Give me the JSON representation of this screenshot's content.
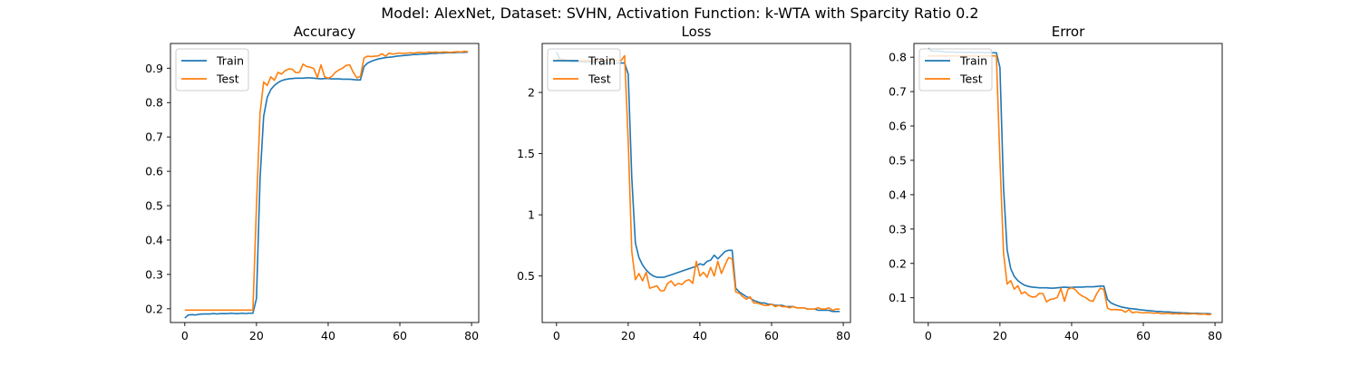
{
  "suptitle": "Model: AlexNet, Dataset: SVHN, Activation Function: k-WTA with Sparcity Ratio 0.2",
  "colors": {
    "train": "#1f77b4",
    "test": "#ff7f0e"
  },
  "chart_data": [
    {
      "type": "line",
      "title": "Accuracy",
      "xlabel": "",
      "ylabel": "",
      "xlim": [
        -4,
        82
      ],
      "ylim": [
        0.16,
        0.972
      ],
      "xticks": [
        0,
        20,
        40,
        60,
        80
      ],
      "yticks": [
        0.2,
        0.3,
        0.4,
        0.5,
        0.6,
        0.7,
        0.8,
        0.9
      ],
      "legend": "upper-left",
      "grid": false,
      "series": [
        {
          "name": "Train",
          "color": "#1f77b4",
          "x": [
            0,
            1,
            2,
            3,
            4,
            5,
            6,
            7,
            8,
            9,
            10,
            11,
            12,
            13,
            14,
            15,
            16,
            17,
            18,
            19,
            20,
            21,
            22,
            23,
            24,
            25,
            26,
            27,
            28,
            29,
            30,
            31,
            32,
            33,
            34,
            35,
            36,
            37,
            38,
            39,
            40,
            41,
            42,
            43,
            44,
            45,
            46,
            47,
            48,
            49,
            50,
            51,
            52,
            53,
            54,
            55,
            56,
            57,
            58,
            59,
            60,
            61,
            62,
            63,
            64,
            65,
            66,
            67,
            68,
            69,
            70,
            71,
            72,
            73,
            74,
            75,
            76,
            77,
            78,
            79
          ],
          "y": [
            0.173,
            0.182,
            0.183,
            0.182,
            0.184,
            0.185,
            0.185,
            0.185,
            0.186,
            0.185,
            0.186,
            0.186,
            0.186,
            0.187,
            0.186,
            0.186,
            0.187,
            0.186,
            0.187,
            0.187,
            0.23,
            0.58,
            0.76,
            0.815,
            0.838,
            0.85,
            0.858,
            0.864,
            0.867,
            0.869,
            0.87,
            0.871,
            0.871,
            0.871,
            0.872,
            0.872,
            0.871,
            0.87,
            0.869,
            0.87,
            0.87,
            0.869,
            0.869,
            0.869,
            0.868,
            0.868,
            0.868,
            0.867,
            0.866,
            0.866,
            0.905,
            0.915,
            0.92,
            0.924,
            0.927,
            0.929,
            0.931,
            0.932,
            0.933,
            0.935,
            0.936,
            0.937,
            0.938,
            0.939,
            0.94,
            0.94,
            0.941,
            0.941,
            0.942,
            0.943,
            0.943,
            0.944,
            0.944,
            0.945,
            0.945,
            0.945,
            0.946,
            0.946,
            0.946,
            0.947
          ]
        },
        {
          "name": "Test",
          "color": "#ff7f0e",
          "x": [
            0,
            1,
            2,
            3,
            4,
            5,
            6,
            7,
            8,
            9,
            10,
            11,
            12,
            13,
            14,
            15,
            16,
            17,
            18,
            19,
            20,
            21,
            22,
            23,
            24,
            25,
            26,
            27,
            28,
            29,
            30,
            31,
            32,
            33,
            34,
            35,
            36,
            37,
            38,
            39,
            40,
            41,
            42,
            43,
            44,
            45,
            46,
            47,
            48,
            49,
            50,
            51,
            52,
            53,
            54,
            55,
            56,
            57,
            58,
            59,
            60,
            61,
            62,
            63,
            64,
            65,
            66,
            67,
            68,
            69,
            70,
            71,
            72,
            73,
            74,
            75,
            76,
            77,
            78,
            79
          ],
          "y": [
            0.196,
            0.196,
            0.196,
            0.196,
            0.196,
            0.196,
            0.196,
            0.196,
            0.196,
            0.196,
            0.196,
            0.196,
            0.196,
            0.196,
            0.196,
            0.196,
            0.196,
            0.196,
            0.196,
            0.196,
            0.5,
            0.77,
            0.86,
            0.85,
            0.875,
            0.865,
            0.888,
            0.883,
            0.893,
            0.898,
            0.897,
            0.887,
            0.888,
            0.912,
            0.905,
            0.903,
            0.899,
            0.873,
            0.91,
            0.875,
            0.871,
            0.876,
            0.888,
            0.895,
            0.9,
            0.908,
            0.91,
            0.888,
            0.872,
            0.876,
            0.93,
            0.935,
            0.934,
            0.935,
            0.936,
            0.942,
            0.935,
            0.944,
            0.941,
            0.943,
            0.944,
            0.943,
            0.944,
            0.945,
            0.944,
            0.946,
            0.946,
            0.945,
            0.947,
            0.946,
            0.947,
            0.946,
            0.947,
            0.947,
            0.946,
            0.947,
            0.948,
            0.947,
            0.949,
            0.948
          ]
        }
      ]
    },
    {
      "type": "line",
      "title": "Loss",
      "xlabel": "",
      "ylabel": "",
      "xlim": [
        -4,
        82
      ],
      "ylim": [
        0.12,
        2.4
      ],
      "xticks": [
        0,
        20,
        40,
        60,
        80
      ],
      "yticks": [
        0.5,
        1.0,
        1.5,
        2.0
      ],
      "legend": "upper-left",
      "grid": false,
      "series": [
        {
          "name": "Train",
          "color": "#1f77b4",
          "x": [
            0,
            1,
            2,
            3,
            4,
            5,
            6,
            7,
            8,
            9,
            10,
            11,
            12,
            13,
            14,
            15,
            16,
            17,
            18,
            19,
            20,
            21,
            22,
            23,
            24,
            25,
            26,
            27,
            28,
            29,
            30,
            31,
            32,
            33,
            34,
            35,
            36,
            37,
            38,
            39,
            40,
            41,
            42,
            43,
            44,
            45,
            46,
            47,
            48,
            49,
            50,
            51,
            52,
            53,
            54,
            55,
            56,
            57,
            58,
            59,
            60,
            61,
            62,
            63,
            64,
            65,
            66,
            67,
            68,
            69,
            70,
            71,
            72,
            73,
            74,
            75,
            76,
            77,
            78,
            79
          ],
          "y": [
            2.33,
            2.27,
            2.26,
            2.26,
            2.25,
            2.25,
            2.25,
            2.25,
            2.25,
            2.25,
            2.25,
            2.25,
            2.25,
            2.24,
            2.24,
            2.24,
            2.24,
            2.24,
            2.24,
            2.24,
            2.15,
            1.3,
            0.77,
            0.65,
            0.59,
            0.55,
            0.52,
            0.5,
            0.49,
            0.49,
            0.49,
            0.5,
            0.51,
            0.52,
            0.53,
            0.54,
            0.55,
            0.56,
            0.57,
            0.58,
            0.6,
            0.59,
            0.62,
            0.63,
            0.67,
            0.64,
            0.67,
            0.7,
            0.71,
            0.71,
            0.4,
            0.37,
            0.35,
            0.33,
            0.32,
            0.3,
            0.29,
            0.28,
            0.28,
            0.27,
            0.27,
            0.26,
            0.26,
            0.26,
            0.25,
            0.25,
            0.25,
            0.24,
            0.24,
            0.24,
            0.23,
            0.23,
            0.23,
            0.22,
            0.22,
            0.22,
            0.22,
            0.21,
            0.21,
            0.21
          ]
        },
        {
          "name": "Test",
          "color": "#ff7f0e",
          "x": [
            0,
            1,
            2,
            3,
            4,
            5,
            6,
            7,
            8,
            9,
            10,
            11,
            12,
            13,
            14,
            15,
            16,
            17,
            18,
            19,
            20,
            21,
            22,
            23,
            24,
            25,
            26,
            27,
            28,
            29,
            30,
            31,
            32,
            33,
            34,
            35,
            36,
            37,
            38,
            39,
            40,
            41,
            42,
            43,
            44,
            45,
            46,
            47,
            48,
            49,
            50,
            51,
            52,
            53,
            54,
            55,
            56,
            57,
            58,
            59,
            60,
            61,
            62,
            63,
            64,
            65,
            66,
            67,
            68,
            69,
            70,
            71,
            72,
            73,
            74,
            75,
            76,
            77,
            78,
            79
          ],
          "y": [
            2.27,
            2.27,
            2.27,
            2.26,
            2.26,
            2.26,
            2.26,
            2.26,
            2.26,
            2.26,
            2.26,
            2.26,
            2.26,
            2.26,
            2.26,
            2.26,
            2.26,
            2.26,
            2.26,
            2.3,
            1.6,
            0.7,
            0.47,
            0.52,
            0.46,
            0.53,
            0.4,
            0.41,
            0.42,
            0.38,
            0.38,
            0.44,
            0.46,
            0.42,
            0.44,
            0.43,
            0.46,
            0.47,
            0.44,
            0.62,
            0.5,
            0.53,
            0.49,
            0.57,
            0.5,
            0.62,
            0.52,
            0.59,
            0.65,
            0.64,
            0.37,
            0.36,
            0.33,
            0.31,
            0.33,
            0.28,
            0.28,
            0.27,
            0.26,
            0.26,
            0.27,
            0.25,
            0.26,
            0.25,
            0.25,
            0.24,
            0.25,
            0.24,
            0.24,
            0.24,
            0.23,
            0.23,
            0.23,
            0.24,
            0.23,
            0.23,
            0.24,
            0.22,
            0.23,
            0.23
          ]
        }
      ]
    },
    {
      "type": "line",
      "title": "Error",
      "xlabel": "",
      "ylabel": "",
      "xlim": [
        -4,
        82
      ],
      "ylim": [
        0.028,
        0.84
      ],
      "xticks": [
        0,
        20,
        40,
        60,
        80
      ],
      "yticks": [
        0.1,
        0.2,
        0.3,
        0.4,
        0.5,
        0.6,
        0.7,
        0.8
      ],
      "legend": "upper-left",
      "grid": false,
      "series": [
        {
          "name": "Train",
          "color": "#1f77b4",
          "x": [
            0,
            1,
            2,
            3,
            4,
            5,
            6,
            7,
            8,
            9,
            10,
            11,
            12,
            13,
            14,
            15,
            16,
            17,
            18,
            19,
            20,
            21,
            22,
            23,
            24,
            25,
            26,
            27,
            28,
            29,
            30,
            31,
            32,
            33,
            34,
            35,
            36,
            37,
            38,
            39,
            40,
            41,
            42,
            43,
            44,
            45,
            46,
            47,
            48,
            49,
            50,
            51,
            52,
            53,
            54,
            55,
            56,
            57,
            58,
            59,
            60,
            61,
            62,
            63,
            64,
            65,
            66,
            67,
            68,
            69,
            70,
            71,
            72,
            73,
            74,
            75,
            76,
            77,
            78,
            79
          ],
          "y": [
            0.826,
            0.818,
            0.817,
            0.818,
            0.816,
            0.815,
            0.815,
            0.815,
            0.814,
            0.815,
            0.814,
            0.814,
            0.814,
            0.813,
            0.814,
            0.814,
            0.813,
            0.814,
            0.813,
            0.813,
            0.77,
            0.42,
            0.24,
            0.185,
            0.162,
            0.15,
            0.142,
            0.136,
            0.133,
            0.131,
            0.13,
            0.129,
            0.129,
            0.129,
            0.128,
            0.128,
            0.129,
            0.13,
            0.131,
            0.13,
            0.13,
            0.131,
            0.131,
            0.131,
            0.132,
            0.132,
            0.132,
            0.133,
            0.134,
            0.134,
            0.095,
            0.085,
            0.08,
            0.076,
            0.073,
            0.071,
            0.069,
            0.068,
            0.067,
            0.065,
            0.064,
            0.063,
            0.062,
            0.061,
            0.06,
            0.06,
            0.059,
            0.059,
            0.058,
            0.057,
            0.057,
            0.056,
            0.056,
            0.055,
            0.055,
            0.055,
            0.054,
            0.054,
            0.054,
            0.053
          ]
        },
        {
          "name": "Test",
          "color": "#ff7f0e",
          "x": [
            0,
            1,
            2,
            3,
            4,
            5,
            6,
            7,
            8,
            9,
            10,
            11,
            12,
            13,
            14,
            15,
            16,
            17,
            18,
            19,
            20,
            21,
            22,
            23,
            24,
            25,
            26,
            27,
            28,
            29,
            30,
            31,
            32,
            33,
            34,
            35,
            36,
            37,
            38,
            39,
            40,
            41,
            42,
            43,
            44,
            45,
            46,
            47,
            48,
            49,
            50,
            51,
            52,
            53,
            54,
            55,
            56,
            57,
            58,
            59,
            60,
            61,
            62,
            63,
            64,
            65,
            66,
            67,
            68,
            69,
            70,
            71,
            72,
            73,
            74,
            75,
            76,
            77,
            78,
            79
          ],
          "y": [
            0.804,
            0.804,
            0.804,
            0.804,
            0.804,
            0.804,
            0.804,
            0.804,
            0.804,
            0.804,
            0.804,
            0.804,
            0.804,
            0.804,
            0.804,
            0.804,
            0.804,
            0.804,
            0.804,
            0.804,
            0.5,
            0.23,
            0.14,
            0.15,
            0.125,
            0.135,
            0.112,
            0.117,
            0.107,
            0.102,
            0.103,
            0.113,
            0.112,
            0.088,
            0.095,
            0.097,
            0.101,
            0.127,
            0.09,
            0.125,
            0.129,
            0.124,
            0.112,
            0.105,
            0.1,
            0.092,
            0.09,
            0.112,
            0.128,
            0.124,
            0.07,
            0.065,
            0.066,
            0.065,
            0.064,
            0.058,
            0.065,
            0.056,
            0.059,
            0.057,
            0.056,
            0.057,
            0.056,
            0.055,
            0.056,
            0.054,
            0.054,
            0.055,
            0.053,
            0.054,
            0.053,
            0.054,
            0.053,
            0.053,
            0.054,
            0.053,
            0.052,
            0.053,
            0.051,
            0.052
          ]
        }
      ]
    }
  ]
}
